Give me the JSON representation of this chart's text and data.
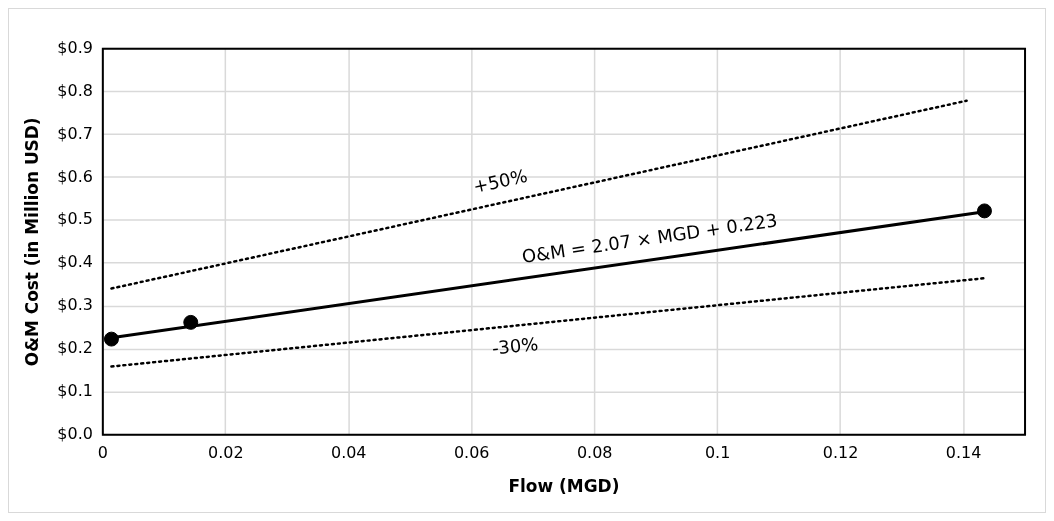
{
  "chart_data": {
    "type": "scatter",
    "xlabel": "Flow (MGD)",
    "ylabel": "O&M Cost (in Million USD)",
    "xlim": [
      0,
      0.15
    ],
    "xticks": [
      0,
      0.02,
      0.04,
      0.06,
      0.08,
      0.1,
      0.12,
      0.14
    ],
    "ylim": [
      0,
      0.9
    ],
    "yticks": [
      {
        "value": 0,
        "label": "$0.0"
      },
      {
        "value": 0.1,
        "label": "$0.1"
      },
      {
        "value": 0.2,
        "label": "$0.2"
      },
      {
        "value": 0.3,
        "label": "$0.3"
      },
      {
        "value": 0.4,
        "label": "$0.4"
      },
      {
        "value": 0.5,
        "label": "$0.5"
      },
      {
        "value": 0.6,
        "label": "$0.6"
      },
      {
        "value": 0.7,
        "label": "$0.7"
      },
      {
        "value": 0.8,
        "label": "$0.8"
      },
      {
        "value": 0.9,
        "label": "$0.9"
      }
    ],
    "grid": true,
    "legend": false,
    "series": [
      {
        "type": "scatter",
        "color": "#000000",
        "marker": "circle",
        "x": [
          0.0014,
          0.0143,
          0.1434
        ],
        "values": [
          0.223,
          0.262,
          0.522
        ]
      },
      {
        "type": "line",
        "color": "#000000",
        "marker": "none",
        "line_style": "solid",
        "x": [
          0.0014,
          0.1434
        ],
        "values": [
          0.226,
          0.52
        ]
      },
      {
        "type": "line",
        "color": "#000000",
        "marker": "none",
        "line_style": "dotted",
        "x": [
          0.0014,
          0.1405
        ],
        "values": [
          0.341,
          0.779
        ]
      },
      {
        "type": "line",
        "color": "#000000",
        "marker": "none",
        "line_style": "dotted",
        "x": [
          0.0014,
          0.1434
        ],
        "values": [
          0.159,
          0.365
        ]
      }
    ],
    "annotations": [
      "O&M = 2.07 × MGD + 0.223",
      "+50%",
      "-30%"
    ]
  }
}
